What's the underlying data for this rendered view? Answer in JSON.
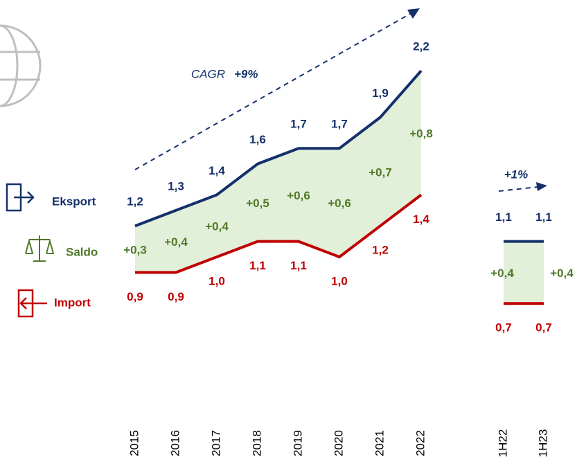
{
  "chart_data": [
    {
      "type": "line",
      "categories": [
        "2015",
        "2016",
        "2017",
        "2018",
        "2019",
        "2020",
        "2021",
        "2022"
      ],
      "series": [
        {
          "name": "Eksport",
          "color": "#14306b",
          "values": [
            1.2,
            1.3,
            1.4,
            1.6,
            1.7,
            1.7,
            1.9,
            2.2
          ],
          "value_labels": [
            "1,2",
            "1,3",
            "1,4",
            "1,6",
            "1,7",
            "1,7",
            "1,9",
            "2,2"
          ]
        },
        {
          "name": "Import",
          "color": "#c00000",
          "values": [
            0.9,
            0.9,
            1.0,
            1.1,
            1.1,
            1.0,
            1.2,
            1.4
          ],
          "value_labels": [
            "0,9",
            "0,9",
            "1,0",
            "1,1",
            "1,1",
            "1,0",
            "1,2",
            "1,4"
          ]
        }
      ],
      "saldo": {
        "name": "Saldo",
        "color": "#4f7a28",
        "fill": "#e2efd9",
        "values": [
          0.3,
          0.4,
          0.4,
          0.5,
          0.6,
          0.6,
          0.7,
          0.8
        ],
        "value_labels": [
          "+0,3",
          "+0,4",
          "+0,4",
          "+0,5",
          "+0,6",
          "+0,6",
          "+0,7",
          "+0,8"
        ]
      },
      "annotation": "CAGR",
      "growth": "+9%"
    },
    {
      "type": "line",
      "categories": [
        "1H22",
        "1H23"
      ],
      "series": [
        {
          "color": "#14306b",
          "values": [
            1.1,
            1.1
          ],
          "value_labels": [
            "1,1",
            "1,1"
          ]
        },
        {
          "color": "#c00000",
          "values": [
            0.7,
            0.7
          ],
          "value_labels": [
            "0,7",
            "0,7"
          ]
        }
      ],
      "saldo": {
        "color": "#4f7a28",
        "fill": "#e2efd9",
        "values": [
          0.4,
          0.4
        ],
        "value_labels": [
          "+0,4",
          "+0,4"
        ]
      },
      "growth": "+1%"
    }
  ]
}
